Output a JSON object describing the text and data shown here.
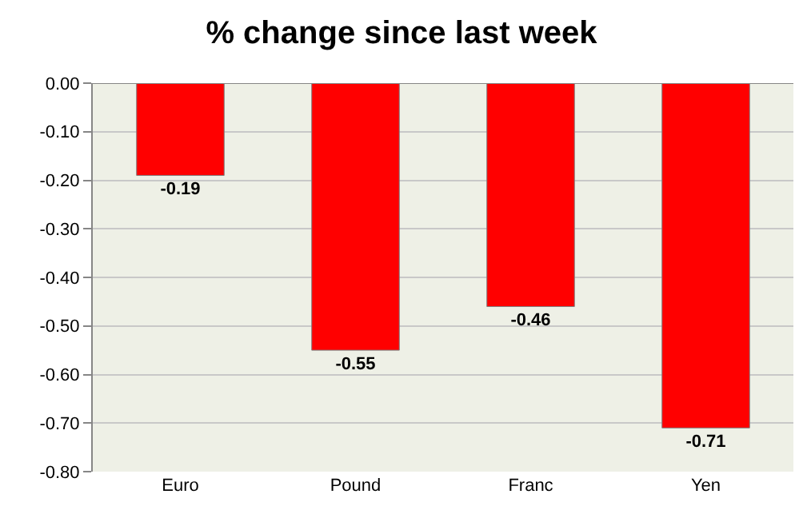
{
  "chart_data": {
    "type": "bar",
    "title": "% change since last week",
    "categories": [
      "Euro",
      "Pound",
      "Franc",
      "Yen"
    ],
    "values": [
      -0.19,
      -0.55,
      -0.46,
      -0.71
    ],
    "color": "#ff0000",
    "ylim": [
      -0.8,
      0
    ],
    "yticks": [
      {
        "value": 0,
        "label": "0.00"
      },
      {
        "value": -0.1,
        "label": "-0.10"
      },
      {
        "value": -0.2,
        "label": "-0.20"
      },
      {
        "value": -0.3,
        "label": "-0.30"
      },
      {
        "value": -0.4,
        "label": "-0.40"
      },
      {
        "value": -0.5,
        "label": "-0.50"
      },
      {
        "value": -0.6,
        "label": "-0.60"
      },
      {
        "value": -0.7,
        "label": "-0.70"
      },
      {
        "value": -0.8,
        "label": "-0.80"
      }
    ],
    "grid": "y",
    "data_labels": true
  }
}
